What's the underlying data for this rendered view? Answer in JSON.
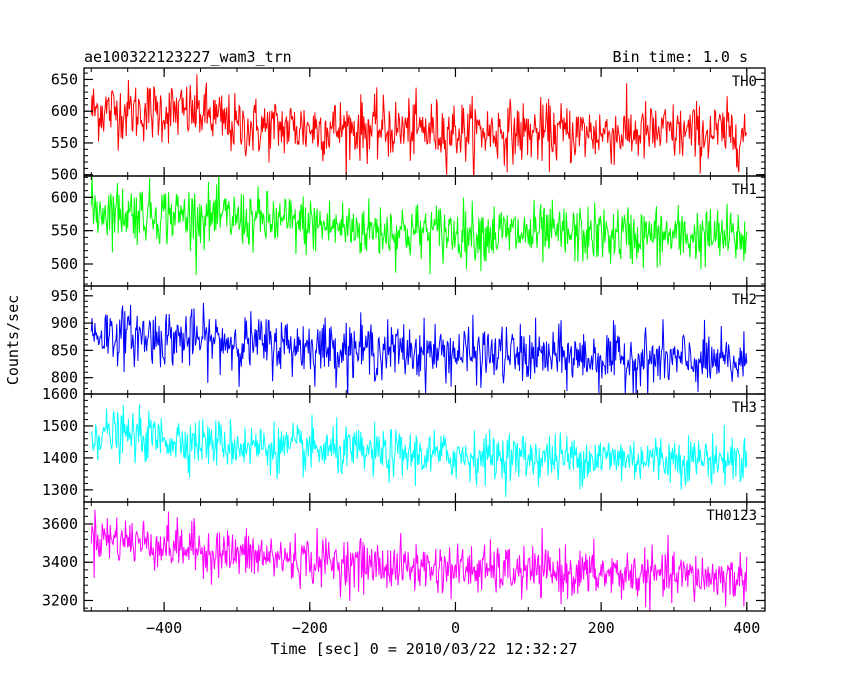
{
  "chart_data": {
    "type": "line",
    "title_left": "ae100322123227_wam3_trn",
    "title_right": "Bin time: 1.0 s",
    "xlabel": "Time [sec] 0 = 2010/03/22 12:32:27",
    "ylabel": "Counts/sec",
    "xlim": [
      -510,
      425
    ],
    "x_range": [
      -500,
      400
    ],
    "bin_time": 1.0,
    "xticks": [
      -400,
      -200,
      0,
      200,
      400
    ],
    "series": [
      {
        "name": "TH0",
        "color": "#ff0000",
        "ylim": [
          498,
          668
        ],
        "yticks": [
          500,
          550,
          600,
          650
        ],
        "mean_start": 600,
        "mean_end": 568,
        "noise": 24,
        "trend": [
          [
            -500,
            602
          ],
          [
            -350,
            598
          ],
          [
            -300,
            575
          ],
          [
            -100,
            572
          ],
          [
            100,
            566
          ],
          [
            400,
            565
          ]
        ]
      },
      {
        "name": "TH1",
        "color": "#00ff00",
        "ylim": [
          467,
          632
        ],
        "yticks": [
          500,
          550,
          600
        ],
        "mean_start": 580,
        "mean_end": 540,
        "noise": 22,
        "trend": [
          [
            -500,
            582
          ],
          [
            -300,
            568
          ],
          [
            -100,
            550
          ],
          [
            100,
            545
          ],
          [
            400,
            540
          ]
        ]
      },
      {
        "name": "TH2",
        "color": "#0000ff",
        "ylim": [
          770,
          968
        ],
        "yticks": [
          800,
          850,
          900,
          950
        ],
        "mean_start": 880,
        "mean_end": 828,
        "noise": 26,
        "trend": [
          [
            -500,
            882
          ],
          [
            -300,
            865
          ],
          [
            -100,
            850
          ],
          [
            100,
            840
          ],
          [
            400,
            826
          ]
        ]
      },
      {
        "name": "TH3",
        "color": "#00ffff",
        "ylim": [
          1262,
          1600
        ],
        "yticks": [
          1300,
          1400,
          1500,
          1600
        ],
        "mean_start": 1478,
        "mean_end": 1395,
        "noise": 38,
        "trend": [
          [
            -500,
            1480
          ],
          [
            -300,
            1440
          ],
          [
            -100,
            1412
          ],
          [
            100,
            1402
          ],
          [
            400,
            1395
          ]
        ]
      },
      {
        "name": "TH0123",
        "color": "#ff00ff",
        "ylim": [
          3145,
          3715
        ],
        "yticks": [
          3200,
          3400,
          3600
        ],
        "mean_start": 3535,
        "mean_end": 3315,
        "noise": 65,
        "trend": [
          [
            -500,
            3540
          ],
          [
            -300,
            3440
          ],
          [
            -100,
            3380
          ],
          [
            100,
            3350
          ],
          [
            400,
            3315
          ]
        ]
      }
    ]
  }
}
